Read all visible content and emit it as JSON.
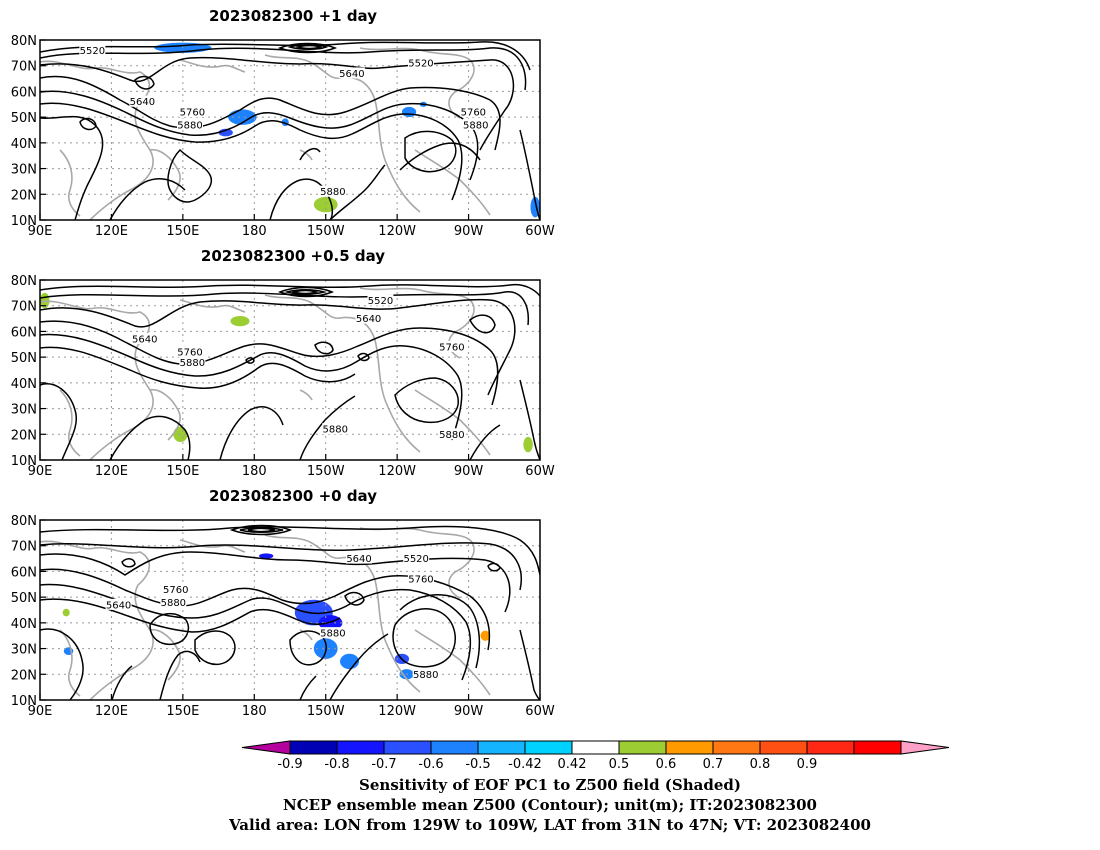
{
  "figure": {
    "caption_lines": [
      "Sensitivity of EOF PC1 to Z500 field (Shaded)",
      "NCEP ensemble mean Z500 (Contour); unit(m); IT:2023082300",
      "Valid area: LON from 129W to 109W, LAT from 31N to 47N; VT: 2023082400"
    ]
  },
  "map_axes": {
    "lat_ticks": [
      "80N",
      "70N",
      "60N",
      "50N",
      "40N",
      "30N",
      "20N",
      "10N"
    ],
    "lon_ticks": [
      "90E",
      "120E",
      "150E",
      "180",
      "150W",
      "120W",
      "90W",
      "60W"
    ]
  },
  "panels": [
    {
      "title": "2023082300  +1 day",
      "contour_labels": [
        {
          "text": "5520",
          "lon": 112,
          "lat": 76
        },
        {
          "text": "5520",
          "lon": 250,
          "lat": 71
        },
        {
          "text": "5640",
          "lon": 221,
          "lat": 67
        },
        {
          "text": "5640",
          "lon": 133,
          "lat": 56
        },
        {
          "text": "5760",
          "lon": 154,
          "lat": 52
        },
        {
          "text": "5880",
          "lon": 153,
          "lat": 47
        },
        {
          "text": "5760",
          "lon": 272,
          "lat": 52
        },
        {
          "text": "5880",
          "lon": 273,
          "lat": 47
        },
        {
          "text": "5880",
          "lon": 213,
          "lat": 21
        }
      ],
      "shading": [
        {
          "lon": 150,
          "lat": 77,
          "rx": 12,
          "ry": 2,
          "v": -0.55
        },
        {
          "lon": 175,
          "lat": 50,
          "rx": 6,
          "ry": 3,
          "v": -0.5
        },
        {
          "lon": 168,
          "lat": 44,
          "rx": 3,
          "ry": 1.5,
          "v": -0.6
        },
        {
          "lon": 245,
          "lat": 52,
          "rx": 3,
          "ry": 2,
          "v": -0.55
        },
        {
          "lon": 208,
          "lat": 18,
          "rx": 8,
          "ry": 5,
          "v": 0.5
        },
        {
          "lon": 210,
          "lat": 16,
          "rx": 5,
          "ry": 3,
          "v": 0.6
        },
        {
          "lon": 204,
          "lat": 12,
          "rx": 5,
          "ry": 2,
          "v": 0.5
        },
        {
          "lon": 298,
          "lat": 15,
          "rx": 2,
          "ry": 4,
          "v": -0.55
        },
        {
          "lon": 251,
          "lat": 55,
          "rx": 1.5,
          "ry": 1,
          "v": -0.5
        },
        {
          "lon": 193,
          "lat": 48,
          "rx": 1.5,
          "ry": 1.5,
          "v": -0.5
        }
      ]
    },
    {
      "title": "2023082300  +0.5 day",
      "contour_labels": [
        {
          "text": "5520",
          "lon": 233,
          "lat": 72
        },
        {
          "text": "5640",
          "lon": 228,
          "lat": 65
        },
        {
          "text": "5640",
          "lon": 134,
          "lat": 57
        },
        {
          "text": "5760",
          "lon": 153,
          "lat": 52
        },
        {
          "text": "5880",
          "lon": 154,
          "lat": 48
        },
        {
          "text": "5760",
          "lon": 263,
          "lat": 54
        },
        {
          "text": "5880",
          "lon": 214,
          "lat": 22
        },
        {
          "text": "5880",
          "lon": 263,
          "lat": 20
        }
      ],
      "shading": [
        {
          "lon": 92,
          "lat": 72,
          "rx": 2,
          "ry": 3,
          "v": 0.6
        },
        {
          "lon": 174,
          "lat": 64,
          "rx": 4,
          "ry": 2,
          "v": 0.55
        },
        {
          "lon": 147,
          "lat": 25,
          "rx": 5,
          "ry": 6,
          "v": 0.5
        },
        {
          "lon": 149,
          "lat": 20,
          "rx": 3,
          "ry": 3,
          "v": 0.6
        },
        {
          "lon": 121,
          "lat": 39,
          "rx": 4,
          "ry": 2,
          "v": 0.5
        },
        {
          "lon": 112,
          "lat": 40,
          "rx": 3,
          "ry": 2,
          "v": 0.5
        },
        {
          "lon": 171,
          "lat": 20,
          "rx": 2,
          "ry": 3,
          "v": 0.5
        },
        {
          "lon": 263,
          "lat": 32,
          "rx": 3,
          "ry": 2,
          "v": 0.5
        },
        {
          "lon": 295,
          "lat": 16,
          "rx": 2,
          "ry": 3,
          "v": 0.6
        },
        {
          "lon": 201,
          "lat": 62,
          "rx": 2,
          "ry": 2,
          "v": 0.5
        }
      ]
    },
    {
      "title": "2023082300  +0 day",
      "contour_labels": [
        {
          "text": "5640",
          "lon": 224,
          "lat": 65
        },
        {
          "text": "5520",
          "lon": 248,
          "lat": 65
        },
        {
          "text": "5760",
          "lon": 250,
          "lat": 57
        },
        {
          "text": "5760",
          "lon": 147,
          "lat": 53
        },
        {
          "text": "5880",
          "lon": 146,
          "lat": 48
        },
        {
          "text": "5640",
          "lon": 123,
          "lat": 47
        },
        {
          "text": "5880",
          "lon": 213,
          "lat": 36
        },
        {
          "text": "5880",
          "lon": 252,
          "lat": 20
        }
      ],
      "shading": [
        {
          "lon": 205,
          "lat": 44,
          "rx": 8,
          "ry": 5,
          "v": -0.6
        },
        {
          "lon": 212,
          "lat": 40,
          "rx": 5,
          "ry": 3,
          "v": -0.7
        },
        {
          "lon": 210,
          "lat": 30,
          "rx": 5,
          "ry": 4,
          "v": -0.55
        },
        {
          "lon": 220,
          "lat": 25,
          "rx": 4,
          "ry": 3,
          "v": -0.5
        },
        {
          "lon": 242,
          "lat": 26,
          "rx": 3,
          "ry": 2,
          "v": -0.6
        },
        {
          "lon": 244,
          "lat": 20,
          "rx": 3,
          "ry": 2,
          "v": -0.55
        },
        {
          "lon": 185,
          "lat": 66,
          "rx": 3,
          "ry": 1,
          "v": -0.7
        },
        {
          "lon": 277,
          "lat": 35,
          "rx": 2,
          "ry": 2,
          "v": 0.7
        },
        {
          "lon": 110,
          "lat": 46,
          "rx": 2,
          "ry": 1.5,
          "v": 0.5
        },
        {
          "lon": 101,
          "lat": 44,
          "rx": 1.5,
          "ry": 1.5,
          "v": 0.6
        },
        {
          "lon": 102,
          "lat": 29,
          "rx": 2,
          "ry": 1.5,
          "v": -0.5
        },
        {
          "lon": 197,
          "lat": 52,
          "rx": 2,
          "ry": 2,
          "v": 0.5
        },
        {
          "lon": 225,
          "lat": 51,
          "rx": 1.5,
          "ry": 1.5,
          "v": 0.5
        }
      ]
    }
  ],
  "colorbar": {
    "colors": [
      "#b4009c",
      "#0000b4",
      "#1414ff",
      "#2a50ff",
      "#1e82ff",
      "#14b4ff",
      "#00d2ff",
      "#ffffff",
      "#9ccd32",
      "#ff9b00",
      "#ff7814",
      "#ff5014",
      "#ff2814",
      "#ff0000",
      "#ffa0c8"
    ],
    "tick_labels": [
      "-0.9",
      "-0.8",
      "-0.7",
      "-0.6",
      "-0.5",
      "-0.42",
      "0.42",
      "0.5",
      "0.6",
      "0.7",
      "0.8",
      "0.9"
    ]
  }
}
